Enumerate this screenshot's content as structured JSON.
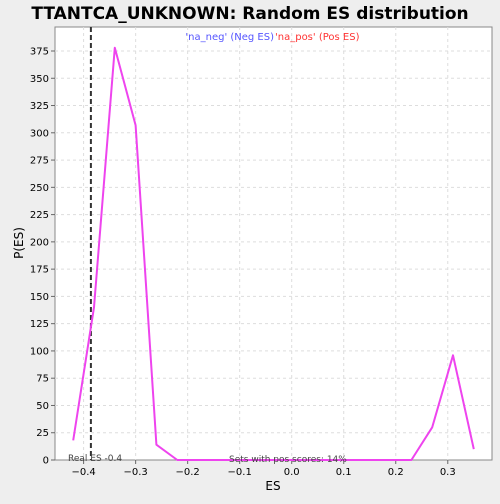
{
  "chart_data": {
    "type": "line",
    "title": "TTANTCA_UNKNOWN: Random ES distribution",
    "xlabel": "ES",
    "ylabel": "P(ES)",
    "xlim": [
      -0.455,
      0.385
    ],
    "ylim": [
      0,
      397
    ],
    "xticks": [
      -0.4,
      -0.3,
      -0.2,
      -0.1,
      0.0,
      0.1,
      0.2,
      0.3
    ],
    "xtick_labels": [
      "−0.4",
      "−0.3",
      "−0.2",
      "−0.1",
      "0.0",
      "0.1",
      "0.2",
      "0.3"
    ],
    "yticks": [
      0,
      25,
      50,
      75,
      100,
      125,
      150,
      175,
      200,
      225,
      250,
      275,
      300,
      325,
      350,
      375
    ],
    "grid": true,
    "legend": [
      {
        "label": "'na_neg' (Neg ES)",
        "color": "#5555ff"
      },
      {
        "label": "'na_pos' (Pos ES)",
        "color": "#ff3333"
      }
    ],
    "series": [
      {
        "color": "#ee44ee",
        "x": [
          -0.42,
          -0.38,
          -0.34,
          -0.3,
          -0.26,
          -0.22,
          -0.18,
          -0.14,
          -0.1,
          -0.06,
          -0.02,
          0.02,
          0.06,
          0.1,
          0.14,
          0.19,
          0.23,
          0.27,
          0.31,
          0.35
        ],
        "y": [
          18,
          140,
          378,
          307,
          14,
          0,
          0,
          0,
          0,
          0,
          0,
          0,
          0,
          0,
          0,
          0,
          0,
          30,
          96,
          10
        ]
      }
    ],
    "vline": {
      "x": -0.386,
      "label": "Real ES -0.4"
    },
    "annotation": "Sets with pos scores: 14%"
  }
}
